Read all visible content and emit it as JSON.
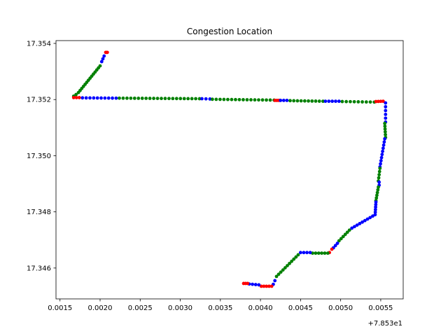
{
  "chart_data": {
    "type": "scatter",
    "title": "Congestion Location",
    "xlabel": "",
    "ylabel": "",
    "x_offset_label": "+7.853e1",
    "xlim": [
      0.00145,
      0.00578
    ],
    "ylim": [
      17.3449,
      17.3541
    ],
    "x_ticks": [
      0.0015,
      0.002,
      0.0025,
      0.003,
      0.0035,
      0.004,
      0.0045,
      0.005,
      0.0055
    ],
    "x_tick_labels": [
      "0.0015",
      "0.0020",
      "0.0025",
      "0.0030",
      "0.0035",
      "0.0040",
      "0.0045",
      "0.0050",
      "0.0055"
    ],
    "y_ticks": [
      17.346,
      17.348,
      17.35,
      17.352,
      17.354
    ],
    "y_tick_labels": [
      "17.346",
      "17.348",
      "17.350",
      "17.352",
      "17.354"
    ],
    "grid": false,
    "colors": {
      "red": "#ff0000",
      "green": "#008000",
      "blue": "#0000ff"
    },
    "segments": [
      {
        "color": "red",
        "x0": 0.00207,
        "y0": 17.35368,
        "x1": 0.00209,
        "y1": 17.35368,
        "n": 3
      },
      {
        "color": "blue",
        "x0": 0.00205,
        "y0": 17.35355,
        "x1": 0.00202,
        "y1": 17.35335,
        "n": 3
      },
      {
        "color": "green",
        "x0": 0.002,
        "y0": 17.3532,
        "x1": 0.00173,
        "y1": 17.35225,
        "n": 14
      },
      {
        "color": "green",
        "x0": 0.0017,
        "y0": 17.35218,
        "x1": 0.00167,
        "y1": 17.35212,
        "n": 2
      },
      {
        "color": "red",
        "x0": 0.00167,
        "y0": 17.35207,
        "x1": 0.00174,
        "y1": 17.35207,
        "n": 3
      },
      {
        "color": "blue",
        "x0": 0.00178,
        "y0": 17.35206,
        "x1": 0.0022,
        "y1": 17.35205,
        "n": 10
      },
      {
        "color": "green",
        "x0": 0.00224,
        "y0": 17.35205,
        "x1": 0.00324,
        "y1": 17.35203,
        "n": 22
      },
      {
        "color": "blue",
        "x0": 0.00327,
        "y0": 17.35203,
        "x1": 0.00337,
        "y1": 17.35202,
        "n": 3
      },
      {
        "color": "green",
        "x0": 0.0034,
        "y0": 17.35201,
        "x1": 0.00417,
        "y1": 17.35198,
        "n": 17
      },
      {
        "color": "red",
        "x0": 0.00418,
        "y0": 17.35197,
        "x1": 0.00423,
        "y1": 17.35197,
        "n": 3
      },
      {
        "color": "blue",
        "x0": 0.00425,
        "y0": 17.35197,
        "x1": 0.00433,
        "y1": 17.35197,
        "n": 3
      },
      {
        "color": "green",
        "x0": 0.00437,
        "y0": 17.35196,
        "x1": 0.00478,
        "y1": 17.35194,
        "n": 10
      },
      {
        "color": "blue",
        "x0": 0.00481,
        "y0": 17.35194,
        "x1": 0.00498,
        "y1": 17.35194,
        "n": 5
      },
      {
        "color": "green",
        "x0": 0.00502,
        "y0": 17.35193,
        "x1": 0.00542,
        "y1": 17.35191,
        "n": 9
      },
      {
        "color": "red",
        "x0": 0.00544,
        "y0": 17.35193,
        "x1": 0.00553,
        "y1": 17.35194,
        "n": 4
      },
      {
        "color": "blue",
        "x0": 0.00556,
        "y0": 17.35188,
        "x1": 0.00556,
        "y1": 17.3512,
        "n": 6
      },
      {
        "color": "green",
        "x0": 0.00555,
        "y0": 17.35115,
        "x1": 0.00556,
        "y1": 17.35065,
        "n": 6
      },
      {
        "color": "blue",
        "x0": 0.00555,
        "y0": 17.3506,
        "x1": 0.00549,
        "y1": 17.3496,
        "n": 10
      },
      {
        "color": "green",
        "x0": 0.00549,
        "y0": 17.34955,
        "x1": 0.00547,
        "y1": 17.3491,
        "n": 5
      },
      {
        "color": "blue",
        "x0": 0.00548,
        "y0": 17.34906,
        "x1": 0.00548,
        "y1": 17.34895,
        "n": 2
      },
      {
        "color": "green",
        "x0": 0.00547,
        "y0": 17.34888,
        "x1": 0.00544,
        "y1": 17.3484,
        "n": 6
      },
      {
        "color": "blue",
        "x0": 0.00544,
        "y0": 17.34835,
        "x1": 0.00543,
        "y1": 17.3479,
        "n": 6
      },
      {
        "color": "blue",
        "x0": 0.0054,
        "y0": 17.34785,
        "x1": 0.00514,
        "y1": 17.34742,
        "n": 9
      },
      {
        "color": "green",
        "x0": 0.00511,
        "y0": 17.34735,
        "x1": 0.00498,
        "y1": 17.34697,
        "n": 6
      },
      {
        "color": "blue",
        "x0": 0.00496,
        "y0": 17.34688,
        "x1": 0.00491,
        "y1": 17.34672,
        "n": 3
      },
      {
        "color": "red",
        "x0": 0.00489,
        "y0": 17.34667,
        "x1": 0.00486,
        "y1": 17.34655,
        "n": 2
      },
      {
        "color": "green",
        "x0": 0.00484,
        "y0": 17.34653,
        "x1": 0.00465,
        "y1": 17.34653,
        "n": 6
      },
      {
        "color": "blue",
        "x0": 0.00462,
        "y0": 17.34655,
        "x1": 0.0045,
        "y1": 17.34655,
        "n": 4
      },
      {
        "color": "green",
        "x0": 0.00447,
        "y0": 17.34647,
        "x1": 0.0042,
        "y1": 17.3457,
        "n": 11
      },
      {
        "color": "blue",
        "x0": 0.00418,
        "y0": 17.34555,
        "x1": 0.00416,
        "y1": 17.34542,
        "n": 2
      },
      {
        "color": "red",
        "x0": 0.00414,
        "y0": 17.34535,
        "x1": 0.00401,
        "y1": 17.34535,
        "n": 5
      },
      {
        "color": "blue",
        "x0": 0.00398,
        "y0": 17.3454,
        "x1": 0.00386,
        "y1": 17.34543,
        "n": 4
      },
      {
        "color": "red",
        "x0": 0.00384,
        "y0": 17.34545,
        "x1": 0.00379,
        "y1": 17.34545,
        "n": 3
      }
    ]
  }
}
